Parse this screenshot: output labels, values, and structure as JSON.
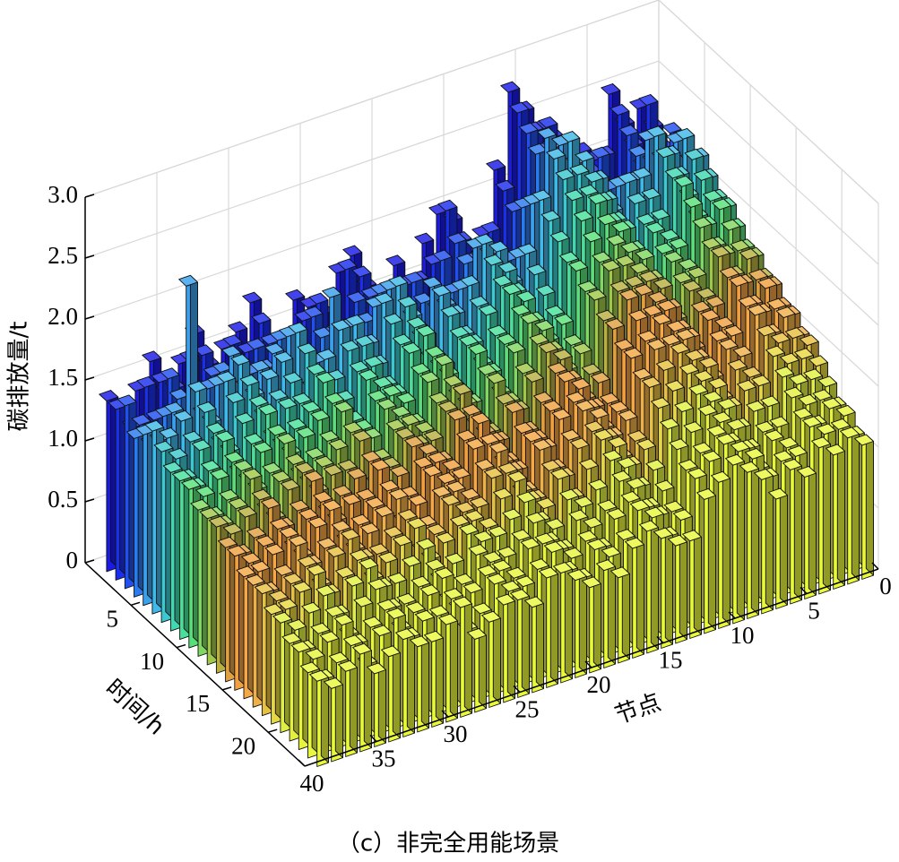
{
  "chart_data": {
    "type": "bar3d",
    "title": "（c）非完全用能场景",
    "x_label": "节点",
    "y_label": "时间/h",
    "z_label": "碳排放量/t",
    "x": [
      1,
      2,
      3,
      4,
      5,
      6,
      7,
      8,
      9,
      10,
      11,
      12,
      13,
      14,
      15,
      16,
      17,
      18,
      19,
      20,
      21,
      22,
      23,
      24,
      25,
      26,
      27,
      28,
      29,
      30,
      31,
      32,
      33,
      34,
      35,
      36,
      37,
      38,
      39
    ],
    "y": [
      1,
      2,
      3,
      4,
      5,
      6,
      7,
      8,
      9,
      10,
      11,
      12,
      13,
      14,
      15,
      16,
      17,
      18,
      19,
      20,
      21,
      22,
      23,
      24
    ],
    "values": [
      [
        2.1,
        2.3,
        2.2,
        2.5,
        2.0,
        2.1,
        1.9,
        2.3,
        2.4,
        2.6,
        2.8,
        2.2,
        1.7,
        1.6,
        1.9,
        2.0,
        1.8,
        1.5,
        1.7,
        1.4,
        1.6,
        1.9,
        1.8,
        1.5,
        1.6,
        1.7,
        1.4,
        1.3,
        1.8,
        1.6,
        1.5,
        1.4,
        1.7,
        1.5,
        1.3,
        1.6,
        1.4,
        1.3,
        1.4
      ],
      [
        2.0,
        2.4,
        2.1,
        2.4,
        2.1,
        2.0,
        2.0,
        2.2,
        2.5,
        2.5,
        2.7,
        2.1,
        1.8,
        1.5,
        1.8,
        2.1,
        1.7,
        1.6,
        1.6,
        1.5,
        1.5,
        1.8,
        1.9,
        1.4,
        1.7,
        1.6,
        1.5,
        1.4,
        1.7,
        1.5,
        1.6,
        1.3,
        1.6,
        1.6,
        1.4,
        1.5,
        1.5,
        1.2,
        1.4
      ],
      [
        2.2,
        2.2,
        2.0,
        2.3,
        1.9,
        2.2,
        1.8,
        2.1,
        2.3,
        2.4,
        2.6,
        2.0,
        1.6,
        1.6,
        1.7,
        1.9,
        1.8,
        1.4,
        1.7,
        1.3,
        1.6,
        1.7,
        1.7,
        1.5,
        1.5,
        1.7,
        1.3,
        1.3,
        1.6,
        1.6,
        1.4,
        1.4,
        1.5,
        1.4,
        1.3,
        1.6,
        1.3,
        1.3,
        1.5
      ],
      [
        2.0,
        2.1,
        2.1,
        2.2,
        2.0,
        2.0,
        1.9,
        2.0,
        2.2,
        2.5,
        2.5,
        2.1,
        1.7,
        1.5,
        1.8,
        1.8,
        1.6,
        1.5,
        1.6,
        1.4,
        1.5,
        1.8,
        1.6,
        1.4,
        1.6,
        1.6,
        1.4,
        1.2,
        1.7,
        1.5,
        1.5,
        1.3,
        1.6,
        1.5,
        1.2,
        1.5,
        1.4,
        1.2,
        1.3
      ],
      [
        2.1,
        2.3,
        2.2,
        2.4,
        2.1,
        2.1,
        2.0,
        2.2,
        2.4,
        2.6,
        2.7,
        2.2,
        1.8,
        1.6,
        1.9,
        2.0,
        1.7,
        1.6,
        1.8,
        1.5,
        1.6,
        1.9,
        1.8,
        1.5,
        1.7,
        2.0,
        1.5,
        1.4,
        1.8,
        1.7,
        1.6,
        1.5,
        1.8,
        1.6,
        1.4,
        2.5,
        1.5,
        1.3,
        1.4
      ],
      [
        2.2,
        2.4,
        2.3,
        2.5,
        2.2,
        2.2,
        2.0,
        2.3,
        2.5,
        2.7,
        2.6,
        2.3,
        1.9,
        1.7,
        2.0,
        2.1,
        1.8,
        1.6,
        1.8,
        1.5,
        1.7,
        2.0,
        1.9,
        1.6,
        1.8,
        1.8,
        1.6,
        1.4,
        1.9,
        1.7,
        1.6,
        1.5,
        1.8,
        1.7,
        1.4,
        1.7,
        1.5,
        1.4,
        1.5
      ],
      [
        2.1,
        2.3,
        2.2,
        2.4,
        2.1,
        2.1,
        1.9,
        2.2,
        2.4,
        2.5,
        2.5,
        2.2,
        1.8,
        1.6,
        1.9,
        2.0,
        1.7,
        1.5,
        1.7,
        1.4,
        1.6,
        1.9,
        1.8,
        1.5,
        1.7,
        1.7,
        1.5,
        1.3,
        1.8,
        1.6,
        1.5,
        1.4,
        1.7,
        1.6,
        1.3,
        1.6,
        1.4,
        1.3,
        1.4
      ],
      [
        2.0,
        2.2,
        2.1,
        2.3,
        2.0,
        2.0,
        1.8,
        2.1,
        2.3,
        2.4,
        2.4,
        2.1,
        1.7,
        1.5,
        1.8,
        1.9,
        1.7,
        1.5,
        1.6,
        1.4,
        1.5,
        1.8,
        1.7,
        1.4,
        1.6,
        1.6,
        1.4,
        1.3,
        1.7,
        1.5,
        1.5,
        1.3,
        1.6,
        1.5,
        1.3,
        1.5,
        1.4,
        1.2,
        1.3
      ],
      [
        2.0,
        2.1,
        2.0,
        2.3,
        1.9,
        2.0,
        1.8,
        2.1,
        2.2,
        2.4,
        2.3,
        2.0,
        1.6,
        1.5,
        1.8,
        1.9,
        1.6,
        1.4,
        1.6,
        1.3,
        1.5,
        1.8,
        1.7,
        1.4,
        1.5,
        1.6,
        1.3,
        1.2,
        1.7,
        1.5,
        1.4,
        1.3,
        1.6,
        1.4,
        1.2,
        1.5,
        1.3,
        1.2,
        1.3
      ],
      [
        1.9,
        2.1,
        2.0,
        2.2,
        1.9,
        1.9,
        1.7,
        2.0,
        2.2,
        2.3,
        2.2,
        2.0,
        1.6,
        1.5,
        1.7,
        1.8,
        1.6,
        1.4,
        1.6,
        1.3,
        1.5,
        1.7,
        1.6,
        1.4,
        1.5,
        1.5,
        1.3,
        1.2,
        1.6,
        1.5,
        1.4,
        1.3,
        1.5,
        1.4,
        1.2,
        1.4,
        1.3,
        1.2,
        1.3
      ],
      [
        1.8,
        2.0,
        1.9,
        2.1,
        1.8,
        1.9,
        1.7,
        2.0,
        2.1,
        2.2,
        2.1,
        1.9,
        1.5,
        1.4,
        1.7,
        1.8,
        1.6,
        1.3,
        1.5,
        1.3,
        1.4,
        1.7,
        1.6,
        1.3,
        1.4,
        1.5,
        1.3,
        1.1,
        1.6,
        1.4,
        1.3,
        1.2,
        1.5,
        1.3,
        1.2,
        1.4,
        1.2,
        1.1,
        1.2
      ],
      [
        1.8,
        1.9,
        1.9,
        2.0,
        1.8,
        1.8,
        1.6,
        1.9,
        2.0,
        2.1,
        2.1,
        1.9,
        1.5,
        1.4,
        1.6,
        1.7,
        1.5,
        1.3,
        1.5,
        1.2,
        1.4,
        1.6,
        1.5,
        1.3,
        1.4,
        1.4,
        1.2,
        1.1,
        1.5,
        1.4,
        1.3,
        1.2,
        1.4,
        1.3,
        1.1,
        1.4,
        1.2,
        1.1,
        1.2
      ],
      [
        1.7,
        1.9,
        1.8,
        2.0,
        1.7,
        1.8,
        1.6,
        1.9,
        2.0,
        2.0,
        2.0,
        1.8,
        1.4,
        1.3,
        1.6,
        1.7,
        1.5,
        1.3,
        1.4,
        1.2,
        1.3,
        1.6,
        1.5,
        1.3,
        1.3,
        1.4,
        1.2,
        1.1,
        1.5,
        1.3,
        1.3,
        1.2,
        1.4,
        1.3,
        1.1,
        1.3,
        1.2,
        1.1,
        1.2
      ],
      [
        1.7,
        1.8,
        1.8,
        1.9,
        1.7,
        1.7,
        1.5,
        1.8,
        1.9,
        2.0,
        2.0,
        1.8,
        1.4,
        1.3,
        1.5,
        1.6,
        1.4,
        1.2,
        1.4,
        1.2,
        1.3,
        1.5,
        1.5,
        1.2,
        1.3,
        1.4,
        1.2,
        1.0,
        1.4,
        1.3,
        1.2,
        1.1,
        1.4,
        1.2,
        1.1,
        1.3,
        1.1,
        1.0,
        1.1
      ],
      [
        1.6,
        1.8,
        1.7,
        1.9,
        1.6,
        1.7,
        1.5,
        1.7,
        1.9,
        1.9,
        1.9,
        1.7,
        1.3,
        1.3,
        1.5,
        1.6,
        1.4,
        1.2,
        1.3,
        1.1,
        1.3,
        1.5,
        1.4,
        1.2,
        1.3,
        1.3,
        1.1,
        1.0,
        1.4,
        1.2,
        1.2,
        1.1,
        1.3,
        1.2,
        1.0,
        1.2,
        1.1,
        1.0,
        1.1
      ],
      [
        1.6,
        1.7,
        1.7,
        1.8,
        1.6,
        1.6,
        1.4,
        1.7,
        1.8,
        1.9,
        1.8,
        1.7,
        1.3,
        1.2,
        1.4,
        1.5,
        1.4,
        1.2,
        1.3,
        1.1,
        1.2,
        1.4,
        1.4,
        1.2,
        1.2,
        1.3,
        1.1,
        1.0,
        1.3,
        1.2,
        1.1,
        1.0,
        1.3,
        1.2,
        1.0,
        1.2,
        1.1,
        1.0,
        1.0
      ],
      [
        1.5,
        1.7,
        1.6,
        1.8,
        1.5,
        1.6,
        1.4,
        1.6,
        1.8,
        1.8,
        1.8,
        1.6,
        1.3,
        1.2,
        1.4,
        1.5,
        1.3,
        1.1,
        1.3,
        1.0,
        1.2,
        1.4,
        1.3,
        1.1,
        1.2,
        1.2,
        1.0,
        0.9,
        1.3,
        1.2,
        1.1,
        1.0,
        1.2,
        1.1,
        1.0,
        1.2,
        1.0,
        0.9,
        1.0
      ],
      [
        1.5,
        1.6,
        1.6,
        1.7,
        1.4,
        1.5,
        1.3,
        1.6,
        1.7,
        1.8,
        1.7,
        1.6,
        1.2,
        1.1,
        1.3,
        1.4,
        1.3,
        1.1,
        1.2,
        1.0,
        1.1,
        1.3,
        1.3,
        1.1,
        1.1,
        1.2,
        1.0,
        0.9,
        1.2,
        1.1,
        1.0,
        1.0,
        1.2,
        1.1,
        0.9,
        1.1,
        1.0,
        0.9,
        1.0
      ],
      [
        1.4,
        1.5,
        1.5,
        1.6,
        1.4,
        1.4,
        1.3,
        1.5,
        1.6,
        1.7,
        1.6,
        1.5,
        1.2,
        1.1,
        1.3,
        1.4,
        1.2,
        1.0,
        1.2,
        1.0,
        1.1,
        1.3,
        1.2,
        1.0,
        1.1,
        1.1,
        1.0,
        0.9,
        1.2,
        1.1,
        1.0,
        0.9,
        1.1,
        1.0,
        0.9,
        1.1,
        1.0,
        0.9,
        0.9
      ],
      [
        1.3,
        1.4,
        1.4,
        1.5,
        1.3,
        1.3,
        1.2,
        1.4,
        1.5,
        1.6,
        1.5,
        1.4,
        1.1,
        1.0,
        1.2,
        1.3,
        1.1,
        1.0,
        1.1,
        0.9,
        1.0,
        1.2,
        1.1,
        1.0,
        1.0,
        1.1,
        0.9,
        0.8,
        1.1,
        1.0,
        0.9,
        0.9,
        1.1,
        1.0,
        0.8,
        1.0,
        0.9,
        0.8,
        0.9
      ],
      [
        1.2,
        1.3,
        1.3,
        1.4,
        1.2,
        1.2,
        1.1,
        1.3,
        1.4,
        1.5,
        1.4,
        1.3,
        1.0,
        0.9,
        1.1,
        1.2,
        1.0,
        0.9,
        1.0,
        0.8,
        0.9,
        1.1,
        1.0,
        0.9,
        0.9,
        1.0,
        0.8,
        0.7,
        1.0,
        0.9,
        0.8,
        0.8,
        1.0,
        0.9,
        0.7,
        0.9,
        0.8,
        0.7,
        0.8
      ],
      [
        1.2,
        1.3,
        1.2,
        1.3,
        1.1,
        1.2,
        1.0,
        1.2,
        1.3,
        1.4,
        1.3,
        1.2,
        0.9,
        0.9,
        1.0,
        1.1,
        1.0,
        0.8,
        0.9,
        0.8,
        0.9,
        1.0,
        1.0,
        0.8,
        0.9,
        0.9,
        0.8,
        0.7,
        1.0,
        0.9,
        0.8,
        0.7,
        0.9,
        0.8,
        0.7,
        0.9,
        0.8,
        0.7,
        0.8
      ],
      [
        1.1,
        1.2,
        1.2,
        1.3,
        1.1,
        1.1,
        1.0,
        1.2,
        1.3,
        1.4,
        1.3,
        1.2,
        0.9,
        0.8,
        1.0,
        1.1,
        0.9,
        0.8,
        0.9,
        0.7,
        0.8,
        1.0,
        0.9,
        0.8,
        0.8,
        0.9,
        0.7,
        0.6,
        0.9,
        0.8,
        0.8,
        0.7,
        0.9,
        0.8,
        0.6,
        0.8,
        0.7,
        0.6,
        0.7
      ],
      [
        1.1,
        1.2,
        1.1,
        1.2,
        1.0,
        1.1,
        0.9,
        1.1,
        1.2,
        1.3,
        1.2,
        1.1,
        0.8,
        0.8,
        0.9,
        1.0,
        0.9,
        0.7,
        0.8,
        0.7,
        0.8,
        0.9,
        0.9,
        0.7,
        0.8,
        0.8,
        0.7,
        0.6,
        0.9,
        0.8,
        0.7,
        0.7,
        0.8,
        0.7,
        0.6,
        0.8,
        0.7,
        0.6,
        0.7
      ]
    ],
    "row_colors": [
      "#1a1ae8",
      "#1a2ef0",
      "#2050f0",
      "#2a7af0",
      "#3aa0ec",
      "#40b8e8",
      "#3cc8d0",
      "#40d8b0",
      "#48e098",
      "#58e078",
      "#80d860",
      "#a0c848",
      "#b8b040",
      "#e0a040",
      "#f0a040",
      "#f5a845",
      "#f0b048",
      "#e8c040",
      "#e8d840",
      "#e0f040",
      "#e4f040",
      "#e8f43c",
      "#e8f83c",
      "#eaf83c"
    ],
    "xlim": [
      0,
      40
    ],
    "xticks": [
      0,
      5,
      10,
      15,
      20,
      25,
      30,
      35,
      40
    ],
    "ylim": [
      0,
      24
    ],
    "yticks": [
      5,
      10,
      15,
      20
    ],
    "zlim": [
      0,
      3
    ],
    "zticks": [
      0,
      0.5,
      {
        "value": 1,
        "label": "1.0"
      },
      1.5,
      {
        "value": 2,
        "label": "2.0"
      },
      2.5,
      {
        "value": 3,
        "label": "3.0"
      }
    ],
    "grid": true
  }
}
